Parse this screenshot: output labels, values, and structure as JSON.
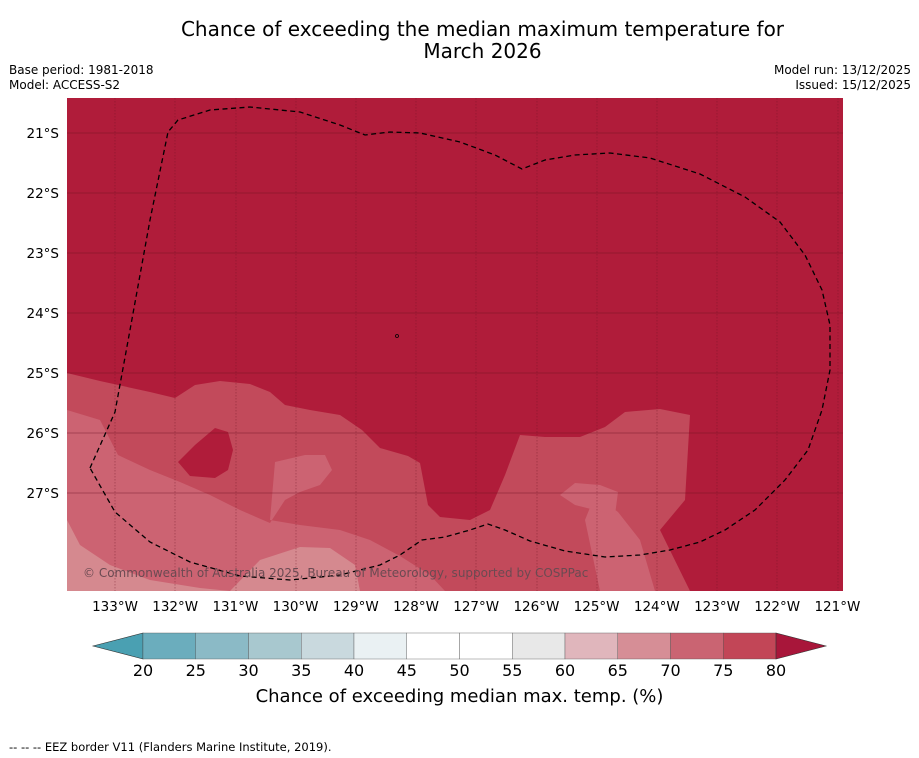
{
  "title": {
    "line1": "Chance of exceeding the median maximum temperature for",
    "line2": "March 2026"
  },
  "meta": {
    "base_period": "Base period: 1981-2018",
    "model": "Model: ACCESS-S2",
    "model_run": "Model run: 13/12/2025",
    "issued": "Issued: 15/12/2025"
  },
  "map": {
    "credit": "© Commonwealth of Australia 2025, Bureau of Meteorology, supported by COSPPac",
    "lat_labels": [
      "21°S",
      "22°S",
      "23°S",
      "24°S",
      "25°S",
      "26°S",
      "27°S"
    ],
    "lon_labels": [
      "133°W",
      "132°W",
      "131°W",
      "130°W",
      "129°W",
      "128°W",
      "127°W",
      "126°W",
      "125°W",
      "124°W",
      "123°W",
      "122°W",
      "121°W"
    ],
    "colors": {
      "above_80": "#b01c3a",
      "75_80": "#c24a5b",
      "70_75": "#cc6372",
      "65_70": "#d5898f"
    }
  },
  "colorbar": {
    "title": "Chance of exceeding median max. temp. (%)",
    "ticks": [
      "20",
      "25",
      "30",
      "35",
      "40",
      "45",
      "50",
      "55",
      "60",
      "65",
      "70",
      "75",
      "80"
    ],
    "colors": [
      "#6badbd",
      "#8bbac6",
      "#a8c8cf",
      "#c9d9de",
      "#eaf1f3",
      "#ffffff",
      "#ffffff",
      "#e8e8e8",
      "#e0b6bc",
      "#d68e96",
      "#ca6472",
      "#c24657"
    ],
    "under_color": "#4aa0b2",
    "over_color": "#a8163a"
  },
  "footer": "--  --  -- EEZ border V11 (Flanders Marine Institute, 2019)."
}
